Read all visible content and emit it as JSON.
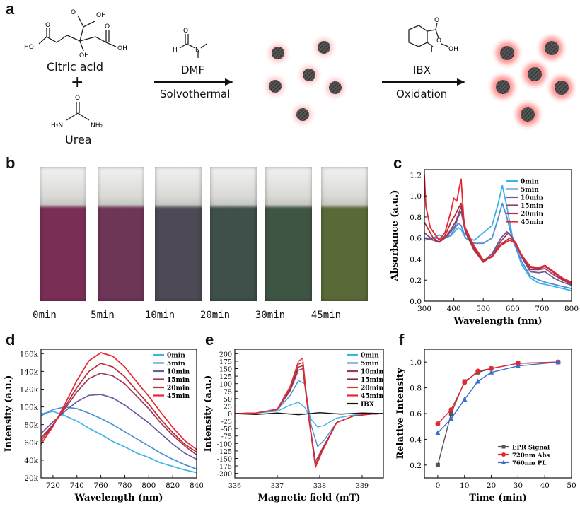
{
  "panels": {
    "a": "a",
    "b": "b",
    "c": "c",
    "d": "d",
    "e": "e",
    "f": "f"
  },
  "scheme": {
    "reactant1": "Citric acid",
    "plus": "+",
    "reactant2": "Urea",
    "step1_top": "DMF",
    "step1_bottom": "Solvothermal",
    "step2_top": "IBX",
    "step2_bottom": "Oxidation",
    "atoms": {
      "OH": "OH",
      "HO": "HO",
      "O": "O",
      "H": "H",
      "N": "N",
      "H2N": "H₂N",
      "NH2": "NH₂",
      "I": "I"
    }
  },
  "vials": {
    "labels": [
      "0min",
      "5min",
      "10min",
      "20min",
      "30min",
      "45min"
    ],
    "colors": [
      "#7a2d55",
      "#6d3556",
      "#4d4a55",
      "#3f4f4a",
      "#3f5543",
      "#596a38"
    ]
  },
  "chart_data": [
    {
      "panel": "c",
      "type": "line",
      "xlabel": "Wavelength (nm)",
      "ylabel": "Absorbance (a.u.)",
      "xlim": [
        300,
        800
      ],
      "ylim": [
        0,
        1.25
      ],
      "xticks": [
        300,
        400,
        500,
        600,
        700,
        800
      ],
      "yticks": [
        0.0,
        0.2,
        0.4,
        0.6,
        0.8,
        1.0,
        1.2
      ],
      "series": [
        {
          "name": "0min",
          "color": "#3fb3e8",
          "x": [
            300,
            330,
            350,
            370,
            390,
            405,
            415,
            425,
            440,
            470,
            500,
            530,
            550,
            565,
            580,
            600,
            630,
            660,
            690,
            710,
            740,
            770,
            800
          ],
          "y": [
            0.58,
            0.6,
            0.63,
            0.6,
            0.62,
            0.67,
            0.7,
            0.68,
            0.6,
            0.58,
            0.65,
            0.72,
            0.92,
            1.1,
            0.9,
            0.6,
            0.35,
            0.22,
            0.17,
            0.16,
            0.14,
            0.12,
            0.1
          ]
        },
        {
          "name": "5min",
          "color": "#4a8fd4",
          "x": [
            300,
            330,
            350,
            370,
            390,
            405,
            415,
            425,
            440,
            470,
            500,
            530,
            550,
            565,
            580,
            600,
            630,
            660,
            690,
            710,
            740,
            770,
            800
          ],
          "y": [
            0.6,
            0.6,
            0.6,
            0.6,
            0.63,
            0.7,
            0.74,
            0.72,
            0.6,
            0.55,
            0.55,
            0.6,
            0.78,
            0.93,
            0.8,
            0.58,
            0.38,
            0.24,
            0.2,
            0.18,
            0.16,
            0.14,
            0.12
          ]
        },
        {
          "name": "10min",
          "color": "#6b5a9e",
          "x": [
            300,
            330,
            350,
            370,
            390,
            405,
            415,
            425,
            440,
            470,
            500,
            530,
            560,
            580,
            600,
            630,
            660,
            690,
            710,
            740,
            770,
            800
          ],
          "y": [
            0.6,
            0.58,
            0.56,
            0.6,
            0.66,
            0.72,
            0.8,
            0.85,
            0.65,
            0.48,
            0.38,
            0.45,
            0.6,
            0.66,
            0.6,
            0.42,
            0.28,
            0.27,
            0.28,
            0.22,
            0.18,
            0.15
          ]
        },
        {
          "name": "15min",
          "color": "#9c3a5a",
          "x": [
            300,
            330,
            350,
            370,
            390,
            405,
            415,
            425,
            440,
            470,
            500,
            530,
            560,
            585,
            600,
            630,
            660,
            690,
            710,
            740,
            770,
            800
          ],
          "y": [
            0.65,
            0.58,
            0.56,
            0.6,
            0.68,
            0.75,
            0.82,
            0.9,
            0.66,
            0.48,
            0.37,
            0.43,
            0.57,
            0.65,
            0.6,
            0.43,
            0.3,
            0.3,
            0.31,
            0.25,
            0.2,
            0.16
          ]
        },
        {
          "name": "20min",
          "color": "#b82d3a",
          "x": [
            300,
            330,
            350,
            370,
            390,
            405,
            415,
            425,
            440,
            470,
            500,
            530,
            560,
            590,
            610,
            630,
            660,
            690,
            710,
            740,
            770,
            800
          ],
          "y": [
            0.75,
            0.6,
            0.56,
            0.62,
            0.75,
            0.82,
            0.88,
            0.93,
            0.68,
            0.5,
            0.38,
            0.42,
            0.54,
            0.6,
            0.56,
            0.44,
            0.32,
            0.31,
            0.33,
            0.27,
            0.21,
            0.17
          ]
        },
        {
          "name": "45min",
          "color": "#e8262f",
          "x": [
            300,
            305,
            320,
            350,
            370,
            390,
            400,
            410,
            420,
            425,
            435,
            470,
            500,
            530,
            560,
            590,
            610,
            630,
            660,
            690,
            710,
            740,
            770,
            800
          ],
          "y": [
            1.2,
            0.9,
            0.7,
            0.58,
            0.65,
            0.85,
            0.98,
            0.95,
            1.1,
            1.16,
            0.72,
            0.52,
            0.39,
            0.42,
            0.53,
            0.58,
            0.55,
            0.44,
            0.33,
            0.32,
            0.34,
            0.28,
            0.22,
            0.18
          ]
        }
      ]
    },
    {
      "panel": "d",
      "type": "line",
      "xlabel": "Wavelength (nm)",
      "ylabel": "Intensity (a.u.)",
      "xlim": [
        710,
        840
      ],
      "ylim": [
        20000,
        165000
      ],
      "xticks": [
        720,
        740,
        760,
        780,
        800,
        820,
        840
      ],
      "yticks": [
        20000,
        40000,
        60000,
        80000,
        100000,
        120000,
        140000,
        160000
      ],
      "ytick_labels": [
        "20k",
        "40k",
        "60k",
        "80k",
        "100k",
        "120k",
        "140k",
        "160k"
      ],
      "series": [
        {
          "name": "0min",
          "color": "#3fb3e8",
          "x": [
            710,
            720,
            730,
            740,
            750,
            760,
            770,
            780,
            790,
            800,
            810,
            820,
            830,
            840
          ],
          "y": [
            92000,
            95000,
            90000,
            84000,
            76000,
            69000,
            61000,
            55000,
            48000,
            43000,
            37000,
            33000,
            29000,
            26000
          ]
        },
        {
          "name": "5min",
          "color": "#4a8fd4",
          "x": [
            710,
            720,
            730,
            740,
            750,
            760,
            770,
            780,
            790,
            800,
            810,
            820,
            830,
            840
          ],
          "y": [
            90000,
            97000,
            100000,
            98000,
            93000,
            87000,
            80000,
            72000,
            64000,
            56000,
            48000,
            41000,
            35000,
            30000
          ]
        },
        {
          "name": "10min",
          "color": "#6b5a9e",
          "x": [
            710,
            720,
            730,
            740,
            750,
            760,
            770,
            780,
            790,
            800,
            810,
            820,
            830,
            840
          ],
          "y": [
            70000,
            83000,
            95000,
            106000,
            113000,
            114000,
            110000,
            102000,
            92000,
            82000,
            70000,
            58000,
            48000,
            41000
          ]
        },
        {
          "name": "15min",
          "color": "#9c3a5a",
          "x": [
            710,
            720,
            730,
            740,
            750,
            760,
            770,
            780,
            790,
            800,
            810,
            820,
            830,
            840
          ],
          "y": [
            65000,
            80000,
            98000,
            117000,
            132000,
            138000,
            135000,
            126000,
            112000,
            98000,
            82000,
            68000,
            56000,
            46000
          ]
        },
        {
          "name": "20min",
          "color": "#b82d3a",
          "x": [
            710,
            720,
            730,
            740,
            750,
            760,
            770,
            780,
            790,
            800,
            810,
            820,
            830,
            840
          ],
          "y": [
            62000,
            79000,
            100000,
            122000,
            140000,
            149000,
            145000,
            134000,
            118000,
            103000,
            86000,
            71000,
            58000,
            49000
          ]
        },
        {
          "name": "45min",
          "color": "#e8262f",
          "x": [
            710,
            720,
            730,
            740,
            750,
            760,
            770,
            780,
            790,
            800,
            810,
            820,
            830,
            840
          ],
          "y": [
            58000,
            78000,
            103000,
            130000,
            152000,
            161000,
            157000,
            145000,
            128000,
            112000,
            94000,
            77000,
            62000,
            52000
          ]
        }
      ]
    },
    {
      "panel": "e",
      "type": "line",
      "xlabel": "Magnetic field (mT)",
      "ylabel": "Intensity (a.u.)",
      "xlim": [
        336,
        339.5
      ],
      "ylim": [
        -215,
        215
      ],
      "xticks": [
        336,
        337,
        338,
        339
      ],
      "yticks": [
        -200,
        -175,
        -150,
        -125,
        -100,
        -75,
        -50,
        -25,
        0,
        25,
        50,
        75,
        100,
        125,
        150,
        175,
        200
      ],
      "series": [
        {
          "name": "0min",
          "color": "#3fb3e8",
          "x": [
            336,
            336.5,
            337,
            337.3,
            337.5,
            337.65,
            337.8,
            337.95,
            338.1,
            338.4,
            338.8,
            339.2,
            339.5
          ],
          "y": [
            0,
            2,
            8,
            28,
            38,
            20,
            -20,
            -45,
            -40,
            -15,
            -5,
            -2,
            0
          ]
        },
        {
          "name": "5min",
          "color": "#4a8fd4",
          "x": [
            336,
            336.5,
            337,
            337.3,
            337.5,
            337.65,
            337.8,
            337.95,
            338.1,
            338.4,
            338.8,
            339.2,
            339.5
          ],
          "y": [
            0,
            2,
            12,
            60,
            110,
            100,
            -40,
            -110,
            -90,
            -30,
            -8,
            -2,
            0
          ]
        },
        {
          "name": "10min",
          "color": "#9c3a5a",
          "x": [
            336,
            336.5,
            337,
            337.3,
            337.5,
            337.6,
            337.75,
            337.9,
            338.05,
            338.4,
            338.8,
            339.2,
            339.5
          ],
          "y": [
            0,
            2,
            14,
            75,
            145,
            150,
            -20,
            -160,
            -120,
            -30,
            -8,
            -2,
            0
          ]
        },
        {
          "name": "15min",
          "color": "#8a2a40",
          "x": [
            336,
            336.5,
            337,
            337.3,
            337.5,
            337.6,
            337.75,
            337.9,
            338.05,
            338.4,
            338.8,
            339.2,
            339.5
          ],
          "y": [
            0,
            2,
            14,
            80,
            155,
            160,
            -20,
            -170,
            -125,
            -30,
            -8,
            -2,
            0
          ]
        },
        {
          "name": "20min",
          "color": "#c44040",
          "x": [
            336,
            336.5,
            337,
            337.3,
            337.5,
            337.6,
            337.75,
            337.9,
            338.05,
            338.4,
            338.8,
            339.2,
            339.5
          ],
          "y": [
            0,
            2,
            15,
            85,
            165,
            170,
            -25,
            -175,
            -128,
            -30,
            -8,
            -2,
            0
          ]
        },
        {
          "name": "45min",
          "color": "#e8262f",
          "x": [
            336,
            336.5,
            337,
            337.3,
            337.5,
            337.6,
            337.75,
            337.9,
            338.05,
            338.4,
            338.8,
            339.2,
            339.5
          ],
          "y": [
            0,
            2,
            15,
            90,
            175,
            185,
            -25,
            -180,
            -130,
            -30,
            -8,
            -2,
            0
          ]
        },
        {
          "name": "IBX",
          "color": "#111111",
          "x": [
            336,
            336.5,
            337,
            337.5,
            338,
            338.5,
            339,
            339.5
          ],
          "y": [
            0,
            -3,
            2,
            -4,
            3,
            -2,
            2,
            0
          ]
        }
      ]
    },
    {
      "panel": "f",
      "type": "line",
      "xlabel": "Time (min)",
      "ylabel": "Relative Intensity",
      "xlim": [
        -5,
        50
      ],
      "ylim": [
        0.1,
        1.1
      ],
      "xticks": [
        0,
        10,
        20,
        30,
        40,
        50
      ],
      "yticks": [
        0.2,
        0.4,
        0.6,
        0.8,
        1.0
      ],
      "series": [
        {
          "name": "EPR Signal",
          "color": "#555555",
          "marker": "square",
          "x": [
            0,
            5,
            10,
            15,
            20,
            30,
            45
          ],
          "y": [
            0.2,
            0.6,
            0.85,
            0.92,
            0.95,
            0.99,
            1.0
          ]
        },
        {
          "name": "720nm Abs",
          "color": "#e8262f",
          "marker": "circle",
          "x": [
            0,
            5,
            10,
            15,
            20,
            30,
            45
          ],
          "y": [
            0.52,
            0.63,
            0.84,
            0.93,
            0.95,
            0.99,
            1.0
          ]
        },
        {
          "name": "760nm PL",
          "color": "#3a6fd0",
          "marker": "triangle",
          "x": [
            0,
            5,
            10,
            15,
            20,
            30,
            45
          ],
          "y": [
            0.45,
            0.56,
            0.71,
            0.85,
            0.92,
            0.97,
            1.0
          ]
        }
      ]
    }
  ]
}
